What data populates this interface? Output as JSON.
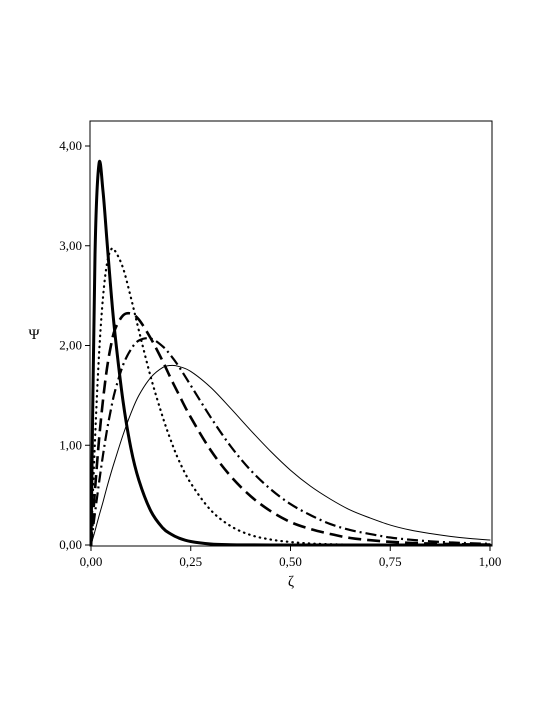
{
  "chart_data": {
    "type": "line",
    "title": "",
    "xlabel": "ζ",
    "ylabel": "Ψ",
    "xlim": [
      0,
      1
    ],
    "ylim": [
      0,
      4
    ],
    "grid": false,
    "legend": "none",
    "x_ticks": [
      0,
      0.25,
      0.5,
      0.75,
      1.0
    ],
    "x_tick_labels": [
      "0,00",
      "0,25",
      "0,50",
      "0,75",
      "1,00"
    ],
    "y_ticks": [
      0,
      1,
      2,
      3,
      4
    ],
    "y_tick_labels": [
      "0,00",
      "1,00",
      "2,00",
      "3,00",
      "4,00"
    ],
    "x": [
      0,
      0.01,
      0.02,
      0.03,
      0.04,
      0.05,
      0.06,
      0.08,
      0.1,
      0.12,
      0.15,
      0.18,
      0.2,
      0.22,
      0.25,
      0.3,
      0.35,
      0.4,
      0.45,
      0.5,
      0.55,
      0.6,
      0.65,
      0.7,
      0.75,
      0.8,
      0.85,
      0.9,
      0.95,
      1.0
    ],
    "series": [
      {
        "style": "thick-solid",
        "values": [
          0,
          2.9,
          3.82,
          3.55,
          3.05,
          2.55,
          2.12,
          1.45,
          0.97,
          0.65,
          0.34,
          0.17,
          0.11,
          0.07,
          0.035,
          0.01,
          0.003,
          0.001,
          0,
          0,
          0,
          0,
          0,
          0,
          0,
          0,
          0,
          0,
          0,
          0
        ]
      },
      {
        "style": "dotted",
        "values": [
          0,
          1.05,
          1.9,
          2.48,
          2.82,
          2.96,
          2.95,
          2.78,
          2.48,
          2.15,
          1.68,
          1.28,
          1.05,
          0.85,
          0.62,
          0.35,
          0.19,
          0.1,
          0.055,
          0.03,
          0.015,
          0.008,
          0.004,
          0.002,
          0.001,
          0,
          0,
          0,
          0,
          0
        ]
      },
      {
        "style": "dashed",
        "values": [
          0,
          0.55,
          1.05,
          1.45,
          1.77,
          2.0,
          2.16,
          2.3,
          2.32,
          2.26,
          2.07,
          1.84,
          1.67,
          1.51,
          1.28,
          0.95,
          0.69,
          0.49,
          0.34,
          0.23,
          0.16,
          0.11,
          0.07,
          0.048,
          0.032,
          0.021,
          0.014,
          0.009,
          0.006,
          0.004
        ]
      },
      {
        "style": "dash-dot",
        "values": [
          0,
          0.32,
          0.62,
          0.9,
          1.15,
          1.36,
          1.54,
          1.8,
          1.96,
          2.05,
          2.07,
          1.99,
          1.9,
          1.79,
          1.6,
          1.28,
          0.99,
          0.75,
          0.56,
          0.41,
          0.3,
          0.21,
          0.15,
          0.11,
          0.075,
          0.053,
          0.037,
          0.026,
          0.018,
          0.012
        ]
      },
      {
        "style": "thin-solid",
        "values": [
          0,
          0.14,
          0.29,
          0.43,
          0.58,
          0.72,
          0.85,
          1.1,
          1.32,
          1.5,
          1.68,
          1.78,
          1.8,
          1.79,
          1.74,
          1.58,
          1.37,
          1.15,
          0.94,
          0.75,
          0.59,
          0.46,
          0.35,
          0.27,
          0.2,
          0.15,
          0.115,
          0.087,
          0.065,
          0.05
        ]
      }
    ]
  }
}
